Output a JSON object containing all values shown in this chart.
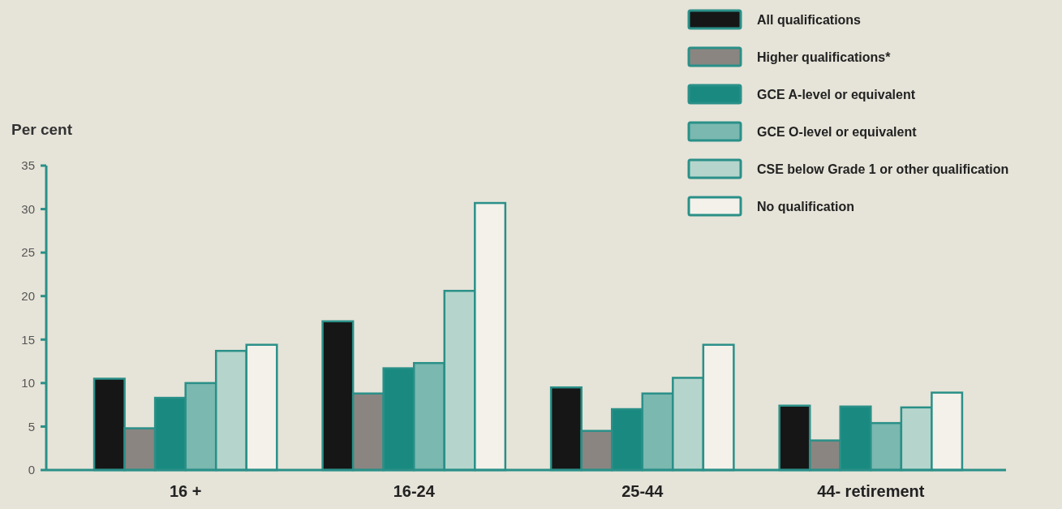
{
  "chart_data": {
    "type": "bar",
    "ylabel": "Per cent",
    "categories": [
      "16 +",
      "16-24",
      "25-44",
      "44- retirement"
    ],
    "series": [
      {
        "name": "All qualifications",
        "color": "#161616",
        "values": [
          10.5,
          17.1,
          9.5,
          7.4
        ]
      },
      {
        "name": "Higher qualifications*",
        "color": "#8a8580",
        "values": [
          4.8,
          8.8,
          4.5,
          3.4
        ]
      },
      {
        "name": "GCE A-level or equivalent",
        "color": "#1a8a80",
        "values": [
          8.3,
          11.7,
          7.0,
          7.3
        ]
      },
      {
        "name": "GCE O-level or equivalent",
        "color": "#7ab8b0",
        "values": [
          10.0,
          12.3,
          8.8,
          5.4
        ]
      },
      {
        "name": "CSE below Grade 1 or other qualification",
        "color": "#b5d5cc",
        "values": [
          13.7,
          20.6,
          10.6,
          7.2
        ]
      },
      {
        "name": "No qualification",
        "color": "#f3f1ea",
        "values": [
          14.4,
          30.7,
          14.4,
          8.9
        ]
      }
    ],
    "ylim": [
      0,
      35
    ],
    "yticks": [
      0,
      5,
      10,
      15,
      20,
      25,
      30,
      35
    ],
    "legend": "top right",
    "grid": false
  }
}
